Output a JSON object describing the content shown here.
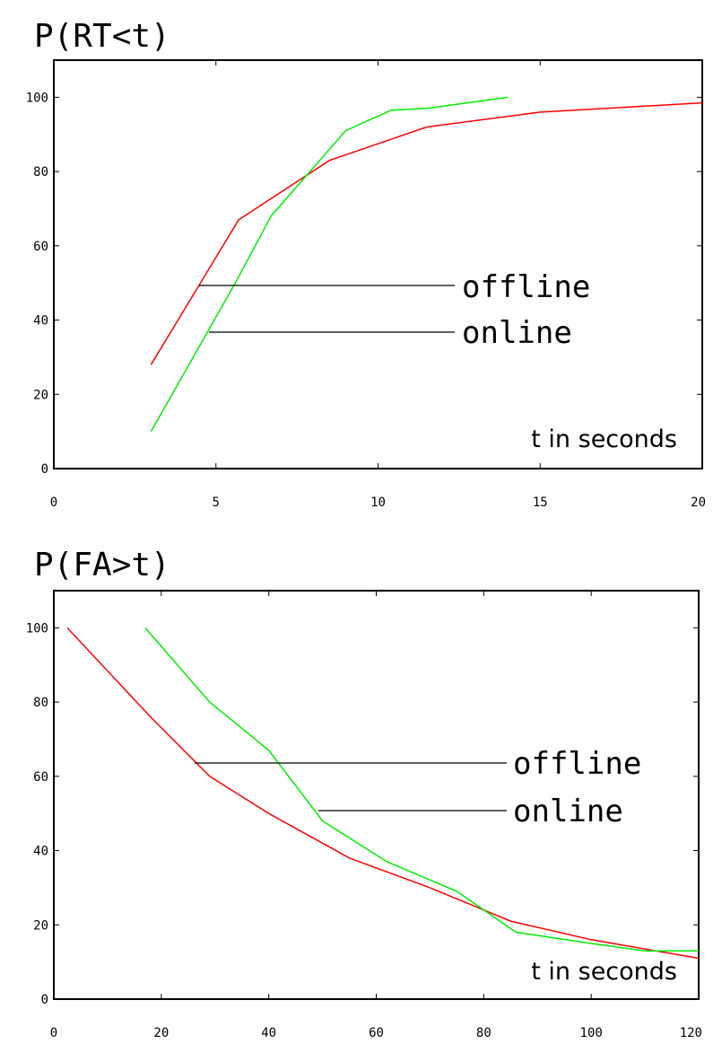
{
  "chart_data": [
    {
      "type": "line",
      "title": "P(RT<t)",
      "xlabel": "t in seconds",
      "ylabel": "",
      "xlim": [
        0,
        20
      ],
      "ylim": [
        0,
        110
      ],
      "xticks": [
        "0",
        "5",
        "10",
        "15",
        "20"
      ],
      "yticks": [
        "0",
        "20",
        "40",
        "60",
        "80",
        "100"
      ],
      "grid": false,
      "legend": "center-right",
      "series": [
        {
          "name": "offline",
          "color": "#ff0000",
          "x": [
            3.0,
            5.7,
            8.5,
            11.5,
            15.0,
            20.0
          ],
          "y": [
            28,
            67,
            83,
            92,
            96,
            98.5
          ]
        },
        {
          "name": "online",
          "color": "#00ee00",
          "x": [
            3.0,
            5.6,
            6.7,
            9.0,
            10.4,
            11.5,
            14.0
          ],
          "y": [
            10,
            50,
            68,
            91,
            96.5,
            97,
            100
          ]
        }
      ]
    },
    {
      "type": "line",
      "title": "P(FA>t)",
      "xlabel": "t in seconds",
      "ylabel": "",
      "xlim": [
        0,
        120
      ],
      "ylim": [
        0,
        110
      ],
      "xticks": [
        "0",
        "20",
        "40",
        "60",
        "80",
        "100",
        "120"
      ],
      "yticks": [
        "0",
        "20",
        "40",
        "60",
        "80",
        "100"
      ],
      "grid": false,
      "legend": "center-right",
      "series": [
        {
          "name": "offline",
          "color": "#ff0000",
          "x": [
            2.5,
            18,
            29,
            40,
            55,
            70,
            85,
            100,
            120
          ],
          "y": [
            100,
            76,
            60,
            50,
            38,
            30,
            21,
            16,
            11
          ]
        },
        {
          "name": "online",
          "color": "#00ee00",
          "x": [
            17,
            29,
            40,
            50,
            62,
            75,
            86,
            100,
            110,
            120
          ],
          "y": [
            100,
            80,
            67,
            48,
            37,
            29,
            18,
            15,
            13,
            13
          ]
        }
      ]
    }
  ]
}
